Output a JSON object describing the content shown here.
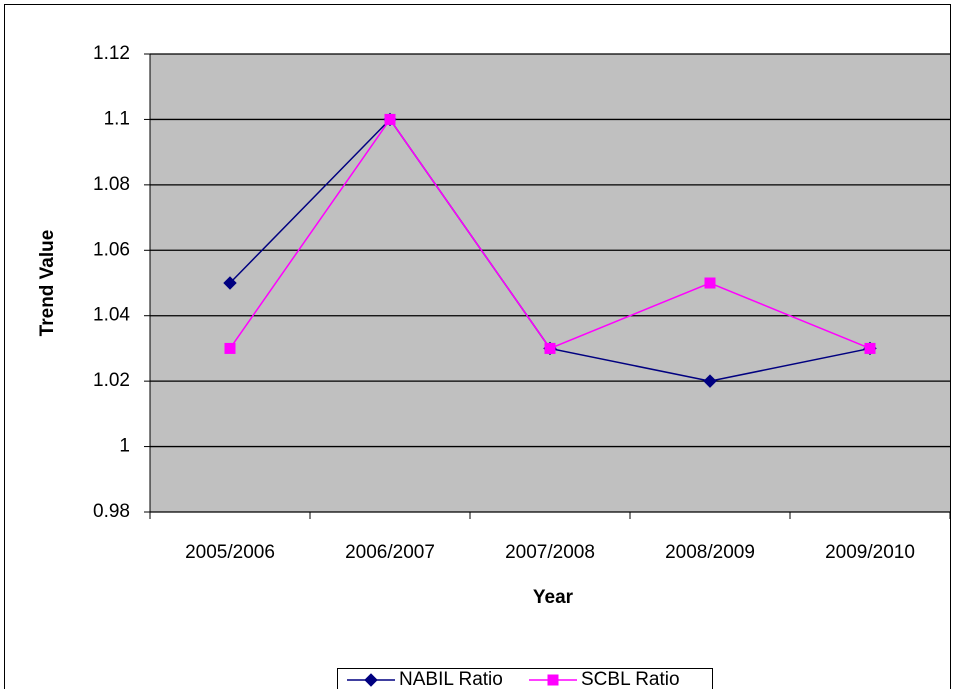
{
  "chart_data": {
    "type": "line",
    "y_label": "Trend Value",
    "x_label": "Year",
    "categories": [
      "2005/2006",
      "2006/2007",
      "2007/2008",
      "2008/2009",
      "2009/2010"
    ],
    "series": [
      {
        "name": "NABIL Ratio",
        "color": "#000080",
        "marker": "diamond",
        "values": [
          1.05,
          1.1,
          1.03,
          1.02,
          1.03
        ]
      },
      {
        "name": "SCBL Ratio",
        "color": "#FF00FF",
        "marker": "square",
        "values": [
          1.03,
          1.1,
          1.03,
          1.05,
          1.03
        ]
      }
    ],
    "ylim": [
      0.98,
      1.12
    ],
    "yticks": [
      0.98,
      1,
      1.02,
      1.04,
      1.06,
      1.08,
      1.1,
      1.12
    ],
    "grid": true,
    "legend": "bottom"
  }
}
